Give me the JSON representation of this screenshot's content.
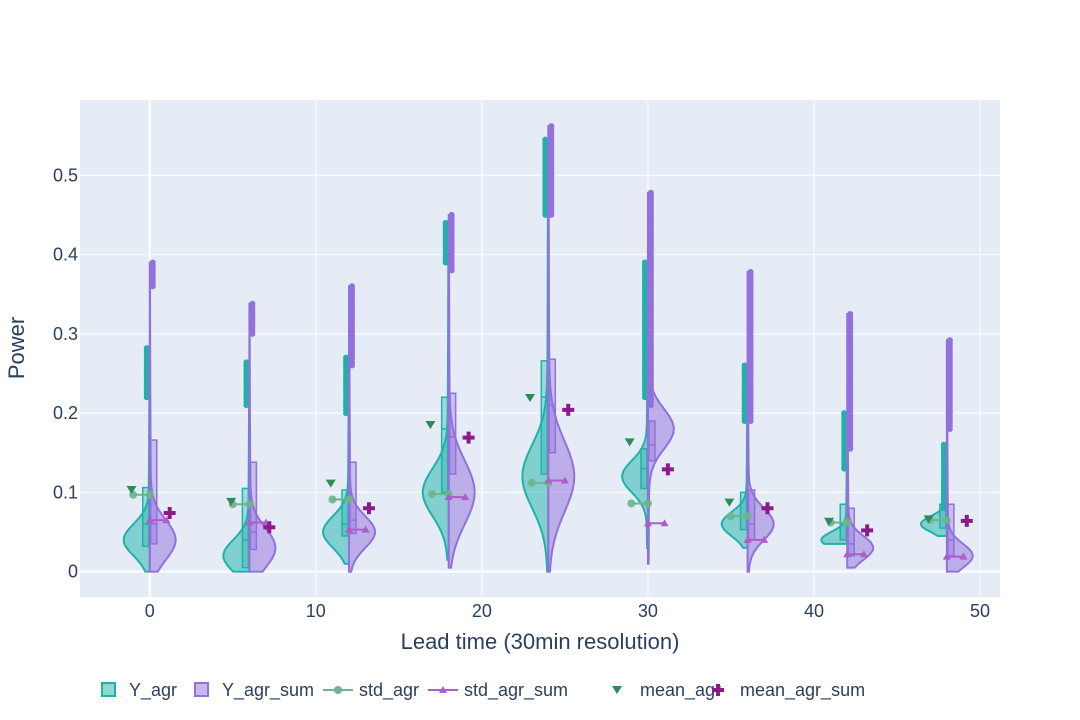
{
  "chart_data": {
    "type": "violin",
    "xlabel": "Lead time (30min resolution)",
    "ylabel": "Power",
    "xlim": [
      -4.2,
      51.2
    ],
    "ylim": [
      -0.032,
      0.595
    ],
    "x_ticks": [
      0,
      10,
      20,
      30,
      40,
      50
    ],
    "y_ticks": [
      0,
      0.1,
      0.2,
      0.3,
      0.4,
      0.5
    ],
    "y_tick_labels": [
      "0",
      "0.1",
      "0.2",
      "0.3",
      "0.4",
      "0.5"
    ],
    "grid": true,
    "legend_position": "bottom",
    "lead_times": [
      0,
      6,
      12,
      18,
      24,
      30,
      36,
      42,
      48
    ],
    "colors": {
      "plot_bg": "#e5ecf6",
      "grid": "#ffffff",
      "y_agr": "#20b2aa",
      "y_agr_sum": "#9370db",
      "std_agr": "#6db58c",
      "std_agr_sum": "#ac5ec9",
      "mean_agr": "#2e8b57",
      "mean_agr_sum": "#8b1a8b"
    },
    "series": [
      {
        "name": "Y_agr",
        "kind": "violin",
        "side": "left",
        "min": [
          0.0,
          0.0,
          0.01,
          0.015,
          0.0,
          0.03,
          0.03,
          0.035,
          0.045
        ],
        "q1": [
          0.032,
          0.005,
          0.045,
          0.1,
          0.123,
          0.105,
          0.053,
          0.04,
          0.055
        ],
        "median": [
          0.06,
          0.04,
          0.06,
          0.18,
          0.22,
          0.13,
          0.07,
          0.06,
          0.065
        ],
        "q3": [
          0.106,
          0.105,
          0.103,
          0.22,
          0.266,
          0.155,
          0.1,
          0.085,
          0.085
        ],
        "max": [
          0.282,
          0.264,
          0.27,
          0.44,
          0.545,
          0.39,
          0.26,
          0.2,
          0.16
        ],
        "outlier_low": [
          0.22,
          0.21,
          0.2,
          0.39,
          0.45,
          0.22,
          0.19,
          0.13,
          0.08
        ],
        "mode": [
          0.04,
          0.02,
          0.05,
          0.1,
          0.12,
          0.12,
          0.06,
          0.04,
          0.06
        ],
        "spread": [
          0.02,
          0.02,
          0.02,
          0.03,
          0.04,
          0.02,
          0.015,
          0.01,
          0.01
        ]
      },
      {
        "name": "Y_agr_sum",
        "kind": "violin",
        "side": "right",
        "min": [
          0.0,
          0.0,
          0.0,
          0.005,
          0.0,
          0.01,
          0.0,
          0.005,
          0.0
        ],
        "q1": [
          0.035,
          0.028,
          0.048,
          0.123,
          0.15,
          0.14,
          0.04,
          0.02,
          0.02
        ],
        "median": [
          0.06,
          0.05,
          0.065,
          0.17,
          0.21,
          0.16,
          0.06,
          0.035,
          0.04
        ],
        "q3": [
          0.166,
          0.138,
          0.138,
          0.225,
          0.268,
          0.19,
          0.103,
          0.08,
          0.085
        ],
        "max": [
          0.39,
          0.338,
          0.36,
          0.45,
          0.562,
          0.478,
          0.378,
          0.325,
          0.292
        ],
        "outlier_low": [
          0.36,
          0.3,
          0.26,
          0.38,
          0.45,
          0.21,
          0.19,
          0.155,
          0.18
        ],
        "mode": [
          0.04,
          0.03,
          0.05,
          0.1,
          0.12,
          0.18,
          0.06,
          0.03,
          0.02
        ],
        "spread": [
          0.025,
          0.025,
          0.02,
          0.04,
          0.045,
          0.025,
          0.02,
          0.015,
          0.015
        ]
      },
      {
        "name": "std_agr",
        "kind": "line",
        "values": [
          0.097,
          0.085,
          0.091,
          0.098,
          0.112,
          0.086,
          0.07,
          0.062,
          0.065
        ]
      },
      {
        "name": "std_agr_sum",
        "kind": "line",
        "values": [
          0.065,
          0.062,
          0.053,
          0.094,
          0.115,
          0.061,
          0.04,
          0.022,
          0.019
        ]
      },
      {
        "name": "mean_agr",
        "kind": "marker",
        "values": [
          0.103,
          0.088,
          0.111,
          0.185,
          0.219,
          0.163,
          0.087,
          0.063,
          0.066
        ]
      },
      {
        "name": "mean_agr_sum",
        "kind": "marker",
        "values": [
          0.074,
          0.056,
          0.08,
          0.169,
          0.204,
          0.129,
          0.08,
          0.052,
          0.064
        ]
      }
    ]
  }
}
